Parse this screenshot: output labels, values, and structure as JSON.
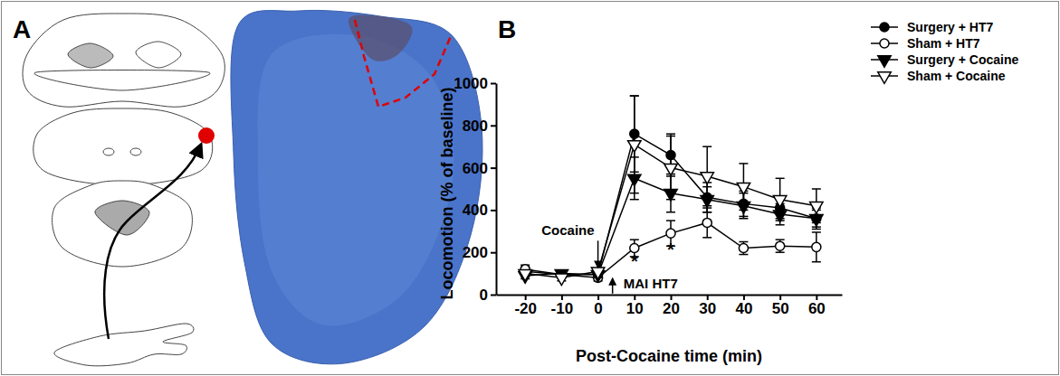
{
  "figure": {
    "panel_a_label": "A",
    "panel_b_label": "B"
  },
  "chart_data": {
    "type": "line",
    "x_label": "Post-Cocaine time (min)",
    "y_label": "Locomotion (% of baseline)",
    "x": [
      -20,
      -10,
      0,
      10,
      20,
      30,
      40,
      50,
      60
    ],
    "xlim": [
      -28,
      67
    ],
    "xticks": [
      -20,
      -10,
      0,
      10,
      20,
      30,
      40,
      50,
      60
    ],
    "ylim": [
      0,
      1000
    ],
    "yticks": [
      0,
      200,
      400,
      600,
      800,
      1000
    ],
    "legend": "upper right",
    "series": [
      {
        "name": "Surgery + HT7",
        "color": "#000000",
        "marker": "circle",
        "line_style": "solid",
        "values": [
          110,
          95,
          95,
          760,
          660,
          460,
          430,
          410,
          360
        ],
        "errors": [
          20,
          15,
          15,
          180,
          100,
          70,
          60,
          50,
          40
        ]
      },
      {
        "name": "Sham + HT7",
        "color": "#000000",
        "marker": "circle-open",
        "line_style": "solid",
        "values": [
          120,
          95,
          80,
          220,
          290,
          340,
          220,
          230,
          225
        ],
        "errors": [
          20,
          15,
          15,
          40,
          60,
          70,
          30,
          30,
          70
        ]
      },
      {
        "name": "Surgery + Cocaine",
        "color": "#000000",
        "marker": "triangle-down",
        "line_style": "solid",
        "values": [
          90,
          100,
          95,
          550,
          480,
          450,
          420,
          380,
          360
        ],
        "errors": [
          15,
          15,
          15,
          100,
          90,
          60,
          60,
          50,
          50
        ]
      },
      {
        "name": "Sham + Cocaine",
        "color": "#000000",
        "marker": "triangle-down-open",
        "line_style": "solid",
        "values": [
          100,
          80,
          110,
          710,
          600,
          560,
          510,
          450,
          420
        ],
        "errors": [
          15,
          15,
          15,
          230,
          150,
          140,
          110,
          100,
          80
        ]
      }
    ],
    "annotations": [
      {
        "text": "Cocaine",
        "x": -1,
        "y": 280,
        "arrow": {
          "x": 0,
          "from": 255,
          "to": 130
        }
      },
      {
        "text": "MAI HT7",
        "x": 7,
        "y": 28,
        "arrow": {
          "x": 4,
          "from": 5,
          "to": 75
        }
      },
      {
        "text": "*",
        "x": 10,
        "y": 130
      },
      {
        "text": "*",
        "x": 20,
        "y": 185
      }
    ]
  }
}
